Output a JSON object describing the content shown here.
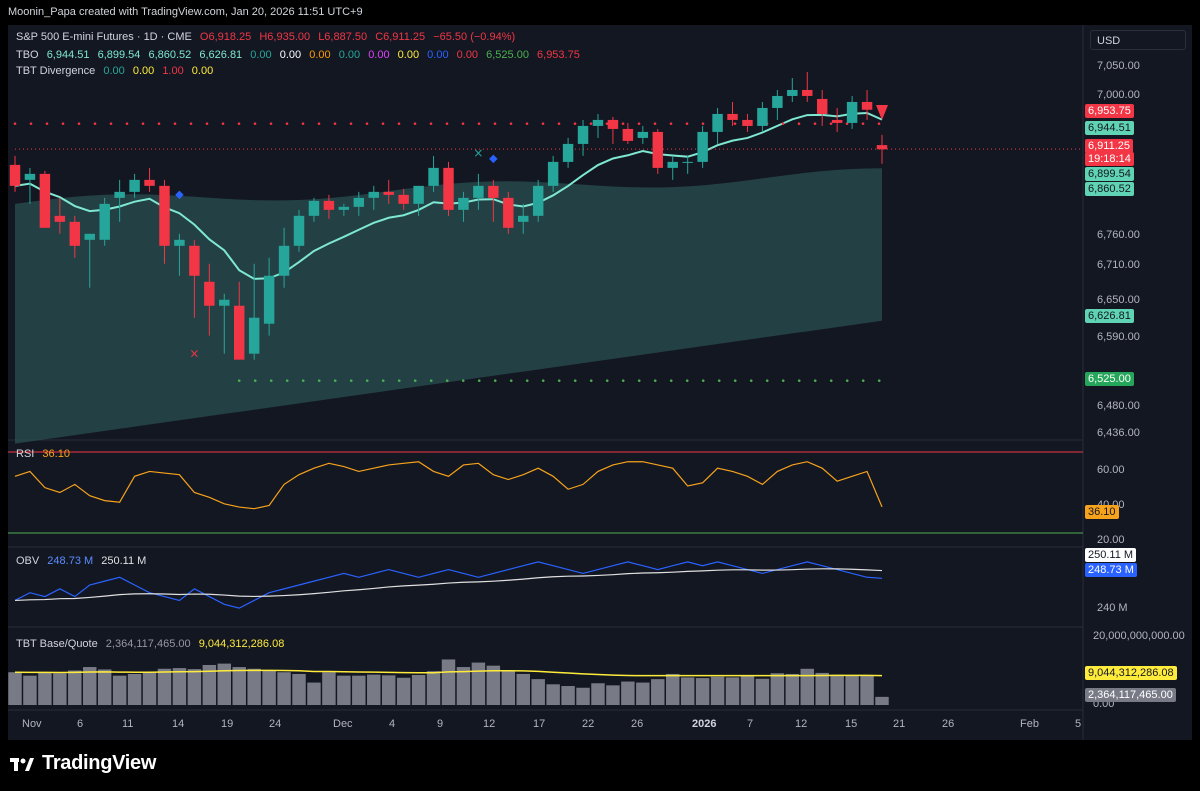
{
  "header": {
    "caption": "Moonin_Papa created with TradingView.com, Jan 20, 2026 11:51 UTC+9"
  },
  "legend": {
    "symbol": "S&P 500 E-mini Futures · 1D · CME",
    "ohlc": {
      "o": "O6,918.25",
      "h": "H6,935.00",
      "l": "L6,887.50",
      "c": "C6,911.25",
      "chg": "−65.50 (−0.94%)"
    },
    "tbo": {
      "name": "TBO",
      "values": [
        "6,944.51",
        "6,899.54",
        "6,860.52",
        "6,626.81",
        "0.00",
        "0.00",
        "0.00",
        "0.00",
        "0.00",
        "0.00",
        "0.00",
        "0.00",
        "6,525.00",
        "6,953.75"
      ]
    },
    "tbt": {
      "name": "TBT Divergence",
      "values": [
        "0.00",
        "0.00",
        "1.00",
        "0.00"
      ]
    }
  },
  "currency_button": "USD",
  "price_axis_ticks": [
    "7,050.00",
    "7,000.00",
    "6,760.00",
    "6,710.00",
    "6,650.00",
    "6,590.00",
    "6,480.00",
    "6,436.00"
  ],
  "price_tags": [
    {
      "text": "6,953.75",
      "bg": "#f23645",
      "fg": "#ffffff"
    },
    {
      "text": "6,944.51",
      "bg": "#5fd3b3",
      "fg": "#131722"
    },
    {
      "text": "6,911.25",
      "bg": "#f23645",
      "fg": "#ffffff"
    },
    {
      "text": "19:18:14",
      "bg": "#f23645",
      "fg": "#ffffff"
    },
    {
      "text": "6,899.54",
      "bg": "#5fd3b3",
      "fg": "#131722"
    },
    {
      "text": "6,860.52",
      "bg": "#5fd3b3",
      "fg": "#131722"
    },
    {
      "text": "6,626.81",
      "bg": "#5fd3b3",
      "fg": "#131722"
    },
    {
      "text": "6,525.00",
      "bg": "#26a65b",
      "fg": "#ffffff"
    }
  ],
  "rsi_panel": {
    "label": "RSI",
    "value": "36.10",
    "ticks": [
      "60.00",
      "40.00",
      "20.00"
    ],
    "tag": "36.10"
  },
  "obv_panel": {
    "label": "OBV",
    "value1": "248.73 M",
    "value2": "250.11 M",
    "ticks": [
      "240 M"
    ],
    "tag1": "250.11 M",
    "tag2": "248.73 M"
  },
  "vol_panel": {
    "label": "TBT Base/Quote",
    "value1": "2,364,117,465.00",
    "value2": "9,044,312,286.08",
    "ticks": [
      "20,000,000,000.00",
      "0.00"
    ],
    "tag1": "9,044,312,286.08",
    "tag2": "2,364,117,465.00"
  },
  "time_axis": [
    {
      "text": "Nov",
      "bold": false
    },
    {
      "text": "6",
      "bold": false
    },
    {
      "text": "11",
      "bold": false
    },
    {
      "text": "14",
      "bold": false
    },
    {
      "text": "19",
      "bold": false
    },
    {
      "text": "24",
      "bold": false
    },
    {
      "text": "Dec",
      "bold": false
    },
    {
      "text": "4",
      "bold": false
    },
    {
      "text": "9",
      "bold": false
    },
    {
      "text": "12",
      "bold": false
    },
    {
      "text": "17",
      "bold": false
    },
    {
      "text": "22",
      "bold": false
    },
    {
      "text": "26",
      "bold": false
    },
    {
      "text": "2026",
      "bold": true
    },
    {
      "text": "7",
      "bold": false
    },
    {
      "text": "12",
      "bold": false
    },
    {
      "text": "15",
      "bold": false
    },
    {
      "text": "21",
      "bold": false
    },
    {
      "text": "26",
      "bold": false
    },
    {
      "text": "Feb",
      "bold": false
    },
    {
      "text": "5",
      "bold": false
    }
  ],
  "footer": {
    "brand": "TradingView",
    "logo_icon": "tradingview-logo-icon"
  },
  "colors": {
    "up": "#26a69a",
    "down": "#f23645",
    "tbo_fast": "#7ee8d2",
    "rsi": "#f7a21b",
    "obv": "#2962ff",
    "obv_ma": "#e0e0e0",
    "vol_bar": "#787b86",
    "vol_ma": "#ffeb3b",
    "cloud": "#2a4f50"
  },
  "chart_data": [
    {
      "type": "candlestick",
      "title": "S&P 500 E-mini Futures · 1D · CME",
      "x_labels_note": "daily bars Oct 30, 2025 – Jan 20, 2026",
      "ohlc": [
        [
          6885,
          6900,
          6840,
          6850
        ],
        [
          6860,
          6880,
          6820,
          6870
        ],
        [
          6870,
          6875,
          6780,
          6780
        ],
        [
          6800,
          6830,
          6770,
          6790
        ],
        [
          6790,
          6800,
          6730,
          6750
        ],
        [
          6760,
          6770,
          6680,
          6770
        ],
        [
          6760,
          6830,
          6750,
          6820
        ],
        [
          6830,
          6860,
          6790,
          6840
        ],
        [
          6840,
          6870,
          6830,
          6860
        ],
        [
          6860,
          6880,
          6840,
          6850
        ],
        [
          6850,
          6860,
          6720,
          6750
        ],
        [
          6750,
          6770,
          6700,
          6760
        ],
        [
          6750,
          6760,
          6630,
          6700
        ],
        [
          6690,
          6720,
          6600,
          6650
        ],
        [
          6650,
          6670,
          6570,
          6660
        ],
        [
          6650,
          6690,
          6560,
          6560
        ],
        [
          6570,
          6720,
          6560,
          6630
        ],
        [
          6620,
          6730,
          6600,
          6700
        ],
        [
          6700,
          6780,
          6680,
          6750
        ],
        [
          6750,
          6810,
          6740,
          6800
        ],
        [
          6800,
          6830,
          6790,
          6825
        ],
        [
          6825,
          6835,
          6795,
          6810
        ],
        [
          6810,
          6820,
          6800,
          6815
        ],
        [
          6815,
          6840,
          6800,
          6830
        ],
        [
          6830,
          6850,
          6810,
          6840
        ],
        [
          6840,
          6860,
          6820,
          6835
        ],
        [
          6835,
          6845,
          6810,
          6820
        ],
        [
          6820,
          6850,
          6800,
          6850
        ],
        [
          6850,
          6900,
          6840,
          6880
        ],
        [
          6880,
          6890,
          6800,
          6810
        ],
        [
          6810,
          6840,
          6790,
          6830
        ],
        [
          6830,
          6870,
          6810,
          6850
        ],
        [
          6850,
          6860,
          6790,
          6830
        ],
        [
          6830,
          6840,
          6770,
          6780
        ],
        [
          6790,
          6820,
          6770,
          6800
        ],
        [
          6800,
          6860,
          6790,
          6850
        ],
        [
          6850,
          6900,
          6840,
          6890
        ],
        [
          6890,
          6930,
          6880,
          6920
        ],
        [
          6920,
          6960,
          6900,
          6950
        ],
        [
          6950,
          6970,
          6930,
          6960
        ],
        [
          6960,
          6965,
          6920,
          6945
        ],
        [
          6945,
          6955,
          6920,
          6925
        ],
        [
          6930,
          6950,
          6920,
          6940
        ],
        [
          6940,
          6945,
          6870,
          6880
        ],
        [
          6880,
          6900,
          6860,
          6890
        ],
        [
          6890,
          6900,
          6870,
          6890
        ],
        [
          6890,
          6950,
          6880,
          6940
        ],
        [
          6940,
          6980,
          6920,
          6970
        ],
        [
          6970,
          6990,
          6950,
          6960
        ],
        [
          6960,
          6970,
          6940,
          6950
        ],
        [
          6950,
          6990,
          6940,
          6980
        ],
        [
          6980,
          7010,
          6960,
          7000
        ],
        [
          7000,
          7030,
          6990,
          7010
        ],
        [
          7010,
          7040,
          6990,
          7000
        ],
        [
          6995,
          7010,
          6950,
          6970
        ],
        [
          6960,
          6980,
          6940,
          6955
        ],
        [
          6955,
          7000,
          6945,
          6990
        ],
        [
          6990,
          7010,
          6960,
          6977
        ],
        [
          6918,
          6935,
          6887,
          6911
        ]
      ]
    },
    {
      "type": "line",
      "name": "RSI",
      "ylim": [
        20,
        70
      ],
      "values": [
        55,
        58,
        48,
        45,
        50,
        43,
        40,
        39,
        55,
        58,
        57,
        56,
        45,
        42,
        38,
        36,
        35,
        37,
        50,
        56,
        60,
        63,
        61,
        58,
        60,
        62,
        63,
        64,
        58,
        55,
        62,
        63,
        56,
        53,
        56,
        60,
        55,
        47,
        50,
        58,
        62,
        64,
        64,
        62,
        60,
        49,
        51,
        60,
        58,
        55,
        50,
        58,
        62,
        64,
        60,
        52,
        55,
        58,
        36.1
      ]
    },
    {
      "type": "line",
      "name": "OBV",
      "values": [
        243,
        245,
        244,
        246,
        244,
        247,
        248,
        249,
        247,
        245,
        244,
        243,
        246,
        244,
        242,
        241,
        243,
        245,
        246,
        247,
        248,
        249,
        250,
        249,
        250,
        251,
        250,
        249,
        250,
        251,
        250,
        249,
        250,
        251,
        252,
        253,
        252,
        251,
        250,
        251,
        252,
        253,
        252,
        251,
        252,
        253,
        252,
        253,
        252,
        251,
        250,
        251,
        252,
        253,
        252,
        251,
        250,
        249,
        248.73
      ]
    },
    {
      "type": "bar",
      "name": "TBT Base/Quote",
      "values": [
        9.5,
        8.5,
        9.5,
        9.2,
        10,
        11,
        10.3,
        8.5,
        9,
        9.5,
        10.5,
        10.7,
        10.4,
        11.6,
        12,
        11,
        10.5,
        10,
        9.5,
        9,
        6.5,
        9.5,
        8.5,
        8.5,
        8.8,
        8.6,
        7.9,
        8.7,
        9.8,
        13.2,
        11,
        12.3,
        11.4,
        10,
        9,
        7.5,
        6,
        5.5,
        5,
        6.3,
        5.7,
        6.8,
        6.5,
        7.5,
        9,
        8,
        7.8,
        8.2,
        8,
        8.7,
        7.6,
        9.2,
        9,
        10.5,
        9.3,
        8.8,
        8.5,
        8.5,
        2.36
      ]
    }
  ]
}
